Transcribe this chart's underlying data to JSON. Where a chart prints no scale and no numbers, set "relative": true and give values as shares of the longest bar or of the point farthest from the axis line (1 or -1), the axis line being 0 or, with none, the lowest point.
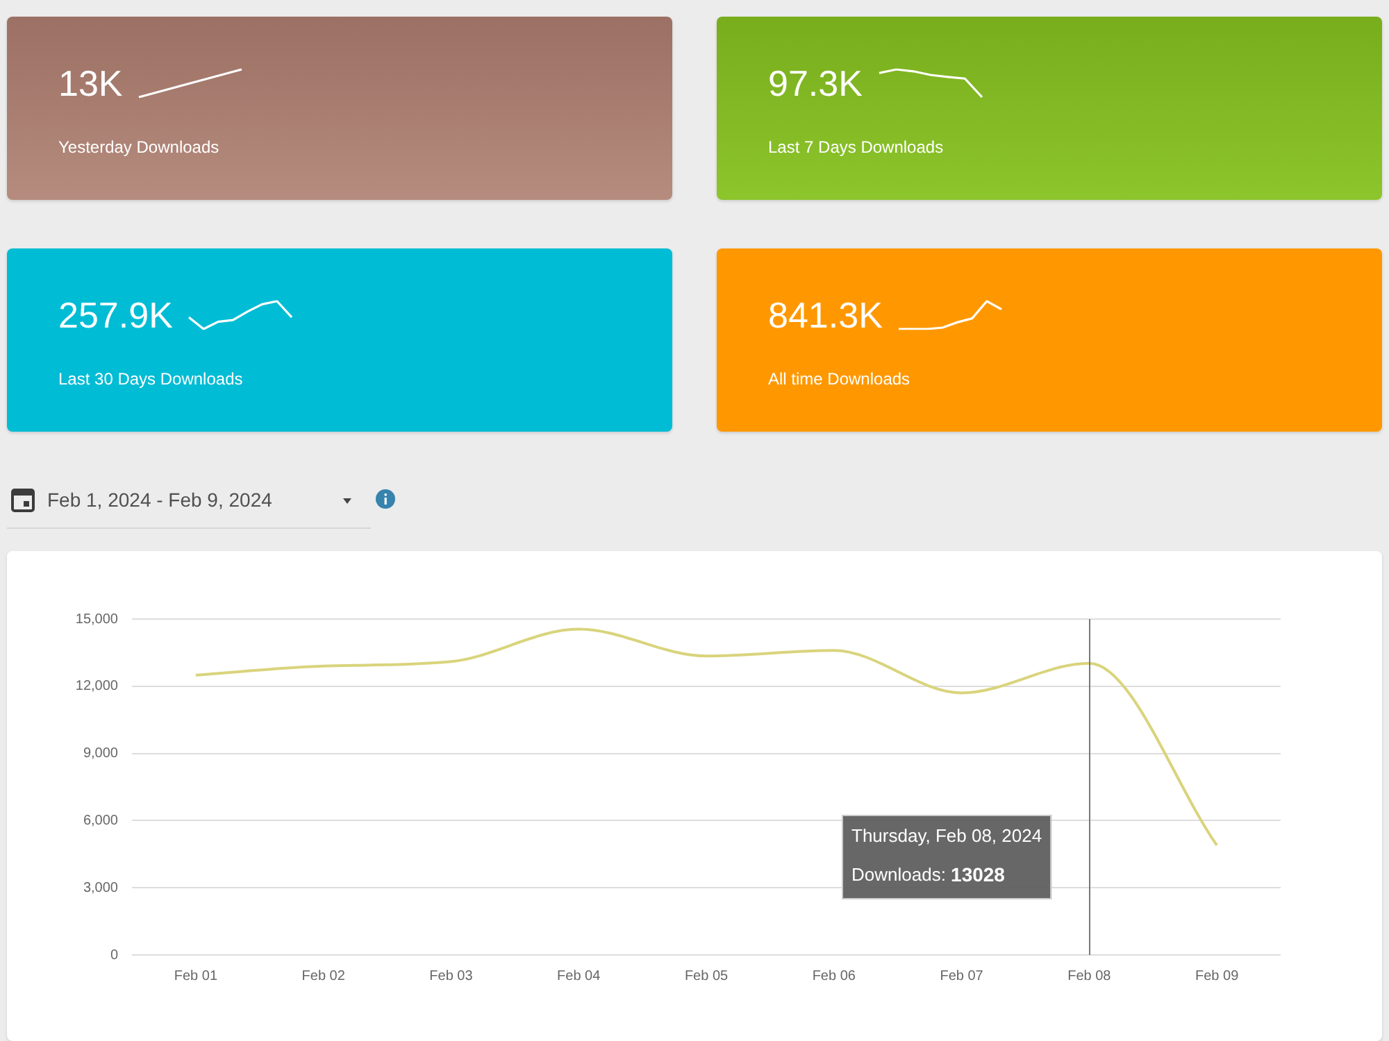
{
  "chart_data": [
    {
      "type": "line",
      "relative": true,
      "title": "13K",
      "subtitle": "Yesterday Downloads",
      "categories": [
        null,
        null
      ],
      "values": [
        0,
        1
      ],
      "color": "#ffffff"
    },
    {
      "type": "line",
      "relative": true,
      "title": "97.3K",
      "subtitle": "Last 7 Days Downloads",
      "categories": [
        null,
        null,
        null,
        null,
        null,
        null,
        null
      ],
      "values": [
        0.87,
        1,
        0.93,
        0.8,
        0.73,
        0.67,
        0
      ],
      "color": "#ffffff"
    },
    {
      "type": "line",
      "relative": true,
      "title": "257.9K",
      "subtitle": "Last 30 Days Downloads",
      "categories": [
        null,
        null,
        null,
        null,
        null,
        null,
        null,
        null
      ],
      "values": [
        0.42,
        0,
        0.26,
        0.32,
        0.63,
        0.89,
        1,
        0.42
      ],
      "color": "#ffffff"
    },
    {
      "type": "line",
      "relative": true,
      "title": "841.3K",
      "subtitle": "All time Downloads",
      "categories": [
        null,
        null,
        null,
        null,
        null,
        null,
        null,
        null
      ],
      "values": [
        0,
        0,
        0,
        0.05,
        0.24,
        0.38,
        1,
        0.71
      ],
      "color": "#ffffff"
    },
    {
      "type": "line",
      "subtitle": "Feb 1, 2024 - Feb 9, 2024",
      "categories": [
        "Feb 01",
        "Feb 02",
        "Feb 03",
        "Feb 04",
        "Feb 05",
        "Feb 06",
        "Feb 07",
        "Feb 08",
        "Feb 09"
      ],
      "values": [
        12500,
        12900,
        13100,
        14550,
        13350,
        13600,
        11700,
        13028,
        4900
      ],
      "color": "#d9d47c",
      "ylim": [
        0,
        15000
      ],
      "yticks": [
        0,
        {
          "value": 3000,
          "label": "3,000"
        },
        {
          "value": 6000,
          "label": "6,000"
        },
        {
          "value": 9000,
          "label": "9,000"
        },
        {
          "value": 12000,
          "label": "12,000"
        },
        {
          "value": 15000,
          "label": "15,000"
        }
      ],
      "grid": "y",
      "marker": "none",
      "ref_lines": [
        {
          "axis": "x",
          "value": "Feb 08",
          "color": "#777777"
        }
      ],
      "annotations": [
        "Thursday, Feb 08, 2024\nDownloads: 13028"
      ]
    }
  ]
}
